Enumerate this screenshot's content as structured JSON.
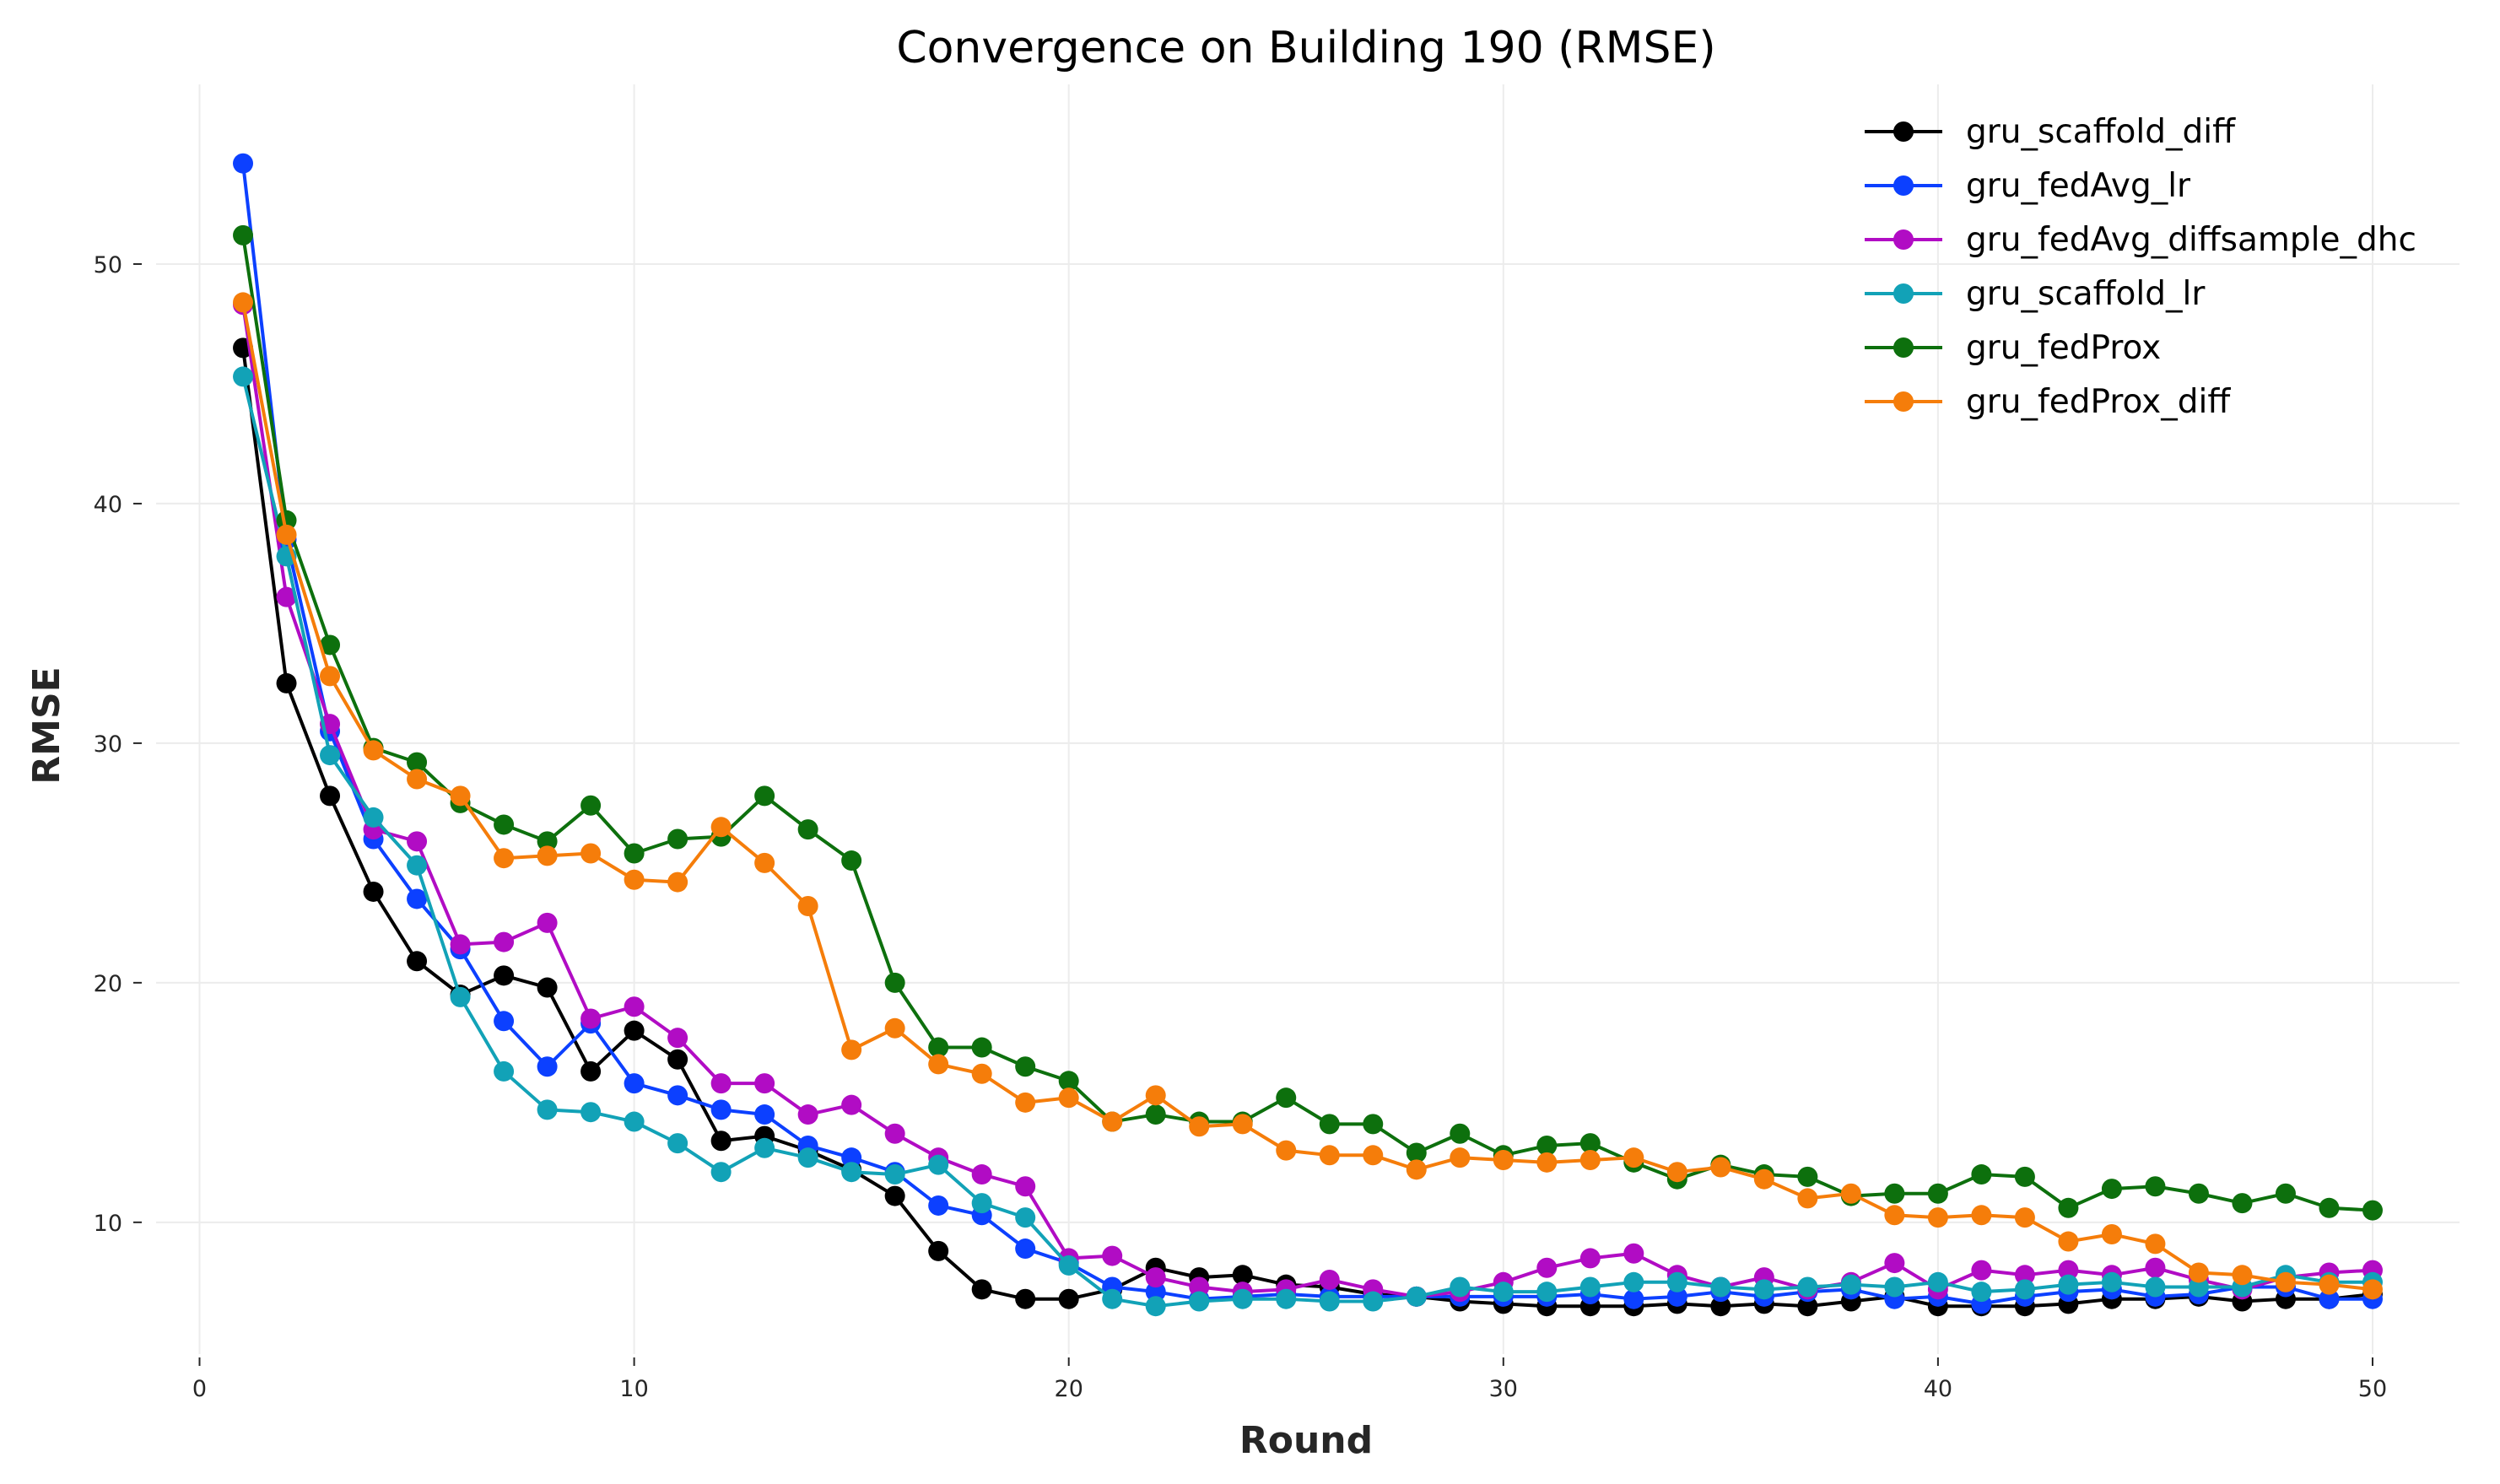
{
  "chart_data": {
    "type": "line",
    "title": "Convergence on Building 190 (RMSE)",
    "xlabel": "Round",
    "ylabel": "RMSE",
    "xlim": [
      -1,
      52
    ],
    "ylim": [
      4.5,
      57.5
    ],
    "xticks": [
      0,
      10,
      20,
      30,
      40,
      50
    ],
    "yticks": [
      10,
      20,
      30,
      40,
      50
    ],
    "grid": true,
    "legend_position": "top-right",
    "x": [
      1,
      2,
      3,
      4,
      5,
      6,
      7,
      8,
      9,
      10,
      11,
      12,
      13,
      14,
      15,
      16,
      17,
      18,
      19,
      20,
      21,
      22,
      23,
      24,
      25,
      26,
      27,
      28,
      29,
      30,
      31,
      32,
      33,
      34,
      35,
      36,
      37,
      38,
      39,
      40,
      41,
      42,
      43,
      44,
      45,
      46,
      47,
      48,
      49,
      50
    ],
    "series": [
      {
        "name": "gru_scaffold_diff",
        "color": "#000000",
        "values": [
          46.5,
          32.5,
          27.8,
          23.8,
          20.9,
          19.5,
          20.3,
          19.8,
          16.3,
          18.0,
          16.8,
          13.4,
          13.6,
          13.0,
          12.2,
          11.1,
          8.8,
          7.2,
          6.8,
          6.8,
          7.2,
          8.1,
          7.7,
          7.8,
          7.4,
          7.3,
          7.0,
          6.9,
          6.7,
          6.6,
          6.5,
          6.5,
          6.5,
          6.6,
          6.5,
          6.6,
          6.5,
          6.7,
          6.9,
          6.5,
          6.5,
          6.5,
          6.6,
          6.8,
          6.8,
          6.9,
          6.7,
          6.8,
          6.8,
          7.0
        ]
      },
      {
        "name": "gru_fedAvg_lr",
        "color": "#0c40ff",
        "values": [
          54.2,
          38.5,
          30.5,
          26.0,
          23.5,
          21.4,
          18.4,
          16.5,
          18.3,
          15.8,
          15.3,
          14.7,
          14.5,
          13.2,
          12.7,
          12.1,
          10.7,
          10.3,
          8.9,
          8.3,
          7.3,
          7.1,
          6.8,
          6.9,
          7.0,
          6.9,
          6.9,
          6.9,
          6.9,
          6.9,
          6.9,
          7.0,
          6.8,
          6.9,
          7.1,
          6.9,
          7.1,
          7.2,
          6.8,
          6.9,
          6.6,
          6.9,
          7.1,
          7.2,
          6.9,
          7.0,
          7.3,
          7.3,
          6.8,
          6.8
        ]
      },
      {
        "name": "gru_fedAvg_diffsample_dhc",
        "color": "#b10cc4",
        "values": [
          48.3,
          36.1,
          30.8,
          26.4,
          25.9,
          21.6,
          21.7,
          22.5,
          18.5,
          19.0,
          17.7,
          15.8,
          15.8,
          14.5,
          14.9,
          13.7,
          12.7,
          12.0,
          11.5,
          8.5,
          8.6,
          7.7,
          7.3,
          7.1,
          7.2,
          7.6,
          7.2,
          6.9,
          7.1,
          7.5,
          8.1,
          8.5,
          8.7,
          7.8,
          7.3,
          7.7,
          7.2,
          7.5,
          8.3,
          7.2,
          8.0,
          7.8,
          8.0,
          7.8,
          8.1,
          7.6,
          7.2,
          7.7,
          7.9,
          8.0
        ]
      },
      {
        "name": "gru_scaffold_lr",
        "color": "#12a2b7",
        "values": [
          45.3,
          37.8,
          29.5,
          26.9,
          24.9,
          19.4,
          16.3,
          14.7,
          14.6,
          14.2,
          13.3,
          12.1,
          13.1,
          12.7,
          12.1,
          12.0,
          12.4,
          10.8,
          10.2,
          8.2,
          6.8,
          6.5,
          6.7,
          6.8,
          6.8,
          6.7,
          6.7,
          6.9,
          7.3,
          7.1,
          7.1,
          7.3,
          7.5,
          7.5,
          7.3,
          7.2,
          7.3,
          7.4,
          7.3,
          7.5,
          7.1,
          7.2,
          7.4,
          7.5,
          7.3,
          7.3,
          7.3,
          7.8,
          7.5,
          7.5
        ]
      },
      {
        "name": "gru_fedProx",
        "color": "#0d700d",
        "values": [
          51.2,
          39.3,
          34.1,
          29.8,
          29.2,
          27.5,
          26.6,
          25.9,
          27.4,
          25.4,
          26.0,
          26.1,
          27.8,
          26.4,
          25.1,
          20.0,
          17.3,
          17.3,
          16.5,
          15.9,
          14.2,
          14.5,
          14.2,
          14.2,
          15.2,
          14.1,
          14.1,
          12.9,
          13.7,
          12.8,
          13.2,
          13.3,
          12.5,
          11.8,
          12.4,
          12.0,
          11.9,
          11.1,
          11.2,
          11.2,
          12.0,
          11.9,
          10.6,
          11.4,
          11.5,
          11.2,
          10.8,
          11.2,
          10.6,
          10.5
        ]
      },
      {
        "name": "gru_fedProx_diff",
        "color": "#f57d0a",
        "values": [
          48.4,
          38.7,
          32.8,
          29.7,
          28.5,
          27.8,
          25.2,
          25.3,
          25.4,
          24.3,
          24.2,
          26.5,
          25.0,
          23.2,
          17.2,
          18.1,
          16.6,
          16.2,
          15.0,
          15.2,
          14.2,
          15.3,
          14.0,
          14.1,
          13.0,
          12.8,
          12.8,
          12.2,
          12.7,
          12.6,
          12.5,
          12.6,
          12.7,
          12.1,
          12.3,
          11.8,
          11.0,
          11.2,
          10.3,
          10.2,
          10.3,
          10.2,
          9.2,
          9.5,
          9.1,
          7.9,
          7.8,
          7.5,
          7.4,
          7.2
        ]
      }
    ]
  }
}
